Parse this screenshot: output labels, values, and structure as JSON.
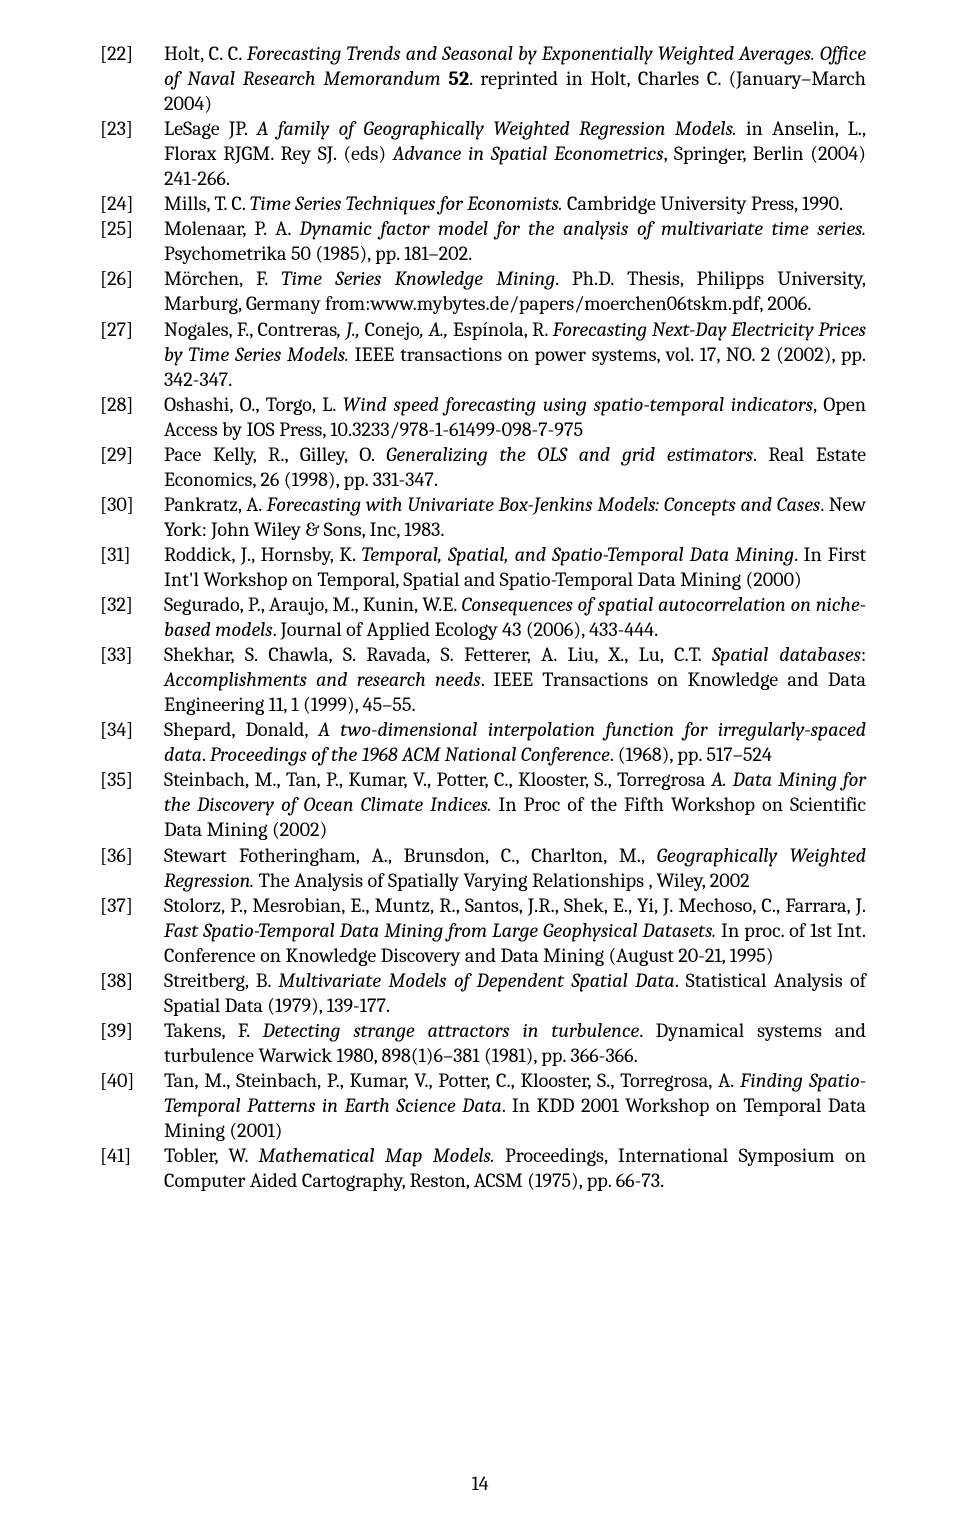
{
  "page_number": "14",
  "references": [
    {
      "num": "[22]",
      "html": "Holt, C. C. <i>Forecasting Trends and Seasonal by Exponentially Weighted Averages. Office of Naval Research Memorandum</i> <b>52</b>. reprinted in Holt, Charles C. (January–March 2004)"
    },
    {
      "num": "[23]",
      "html": "LeSage JP. <i>A family of Geographically Weighted Regression Models.</i> in Anselin, L., Florax RJGM. Rey SJ. (eds) <i>Advance in Spatial Econometrics</i>, Springer, Berlin (2004) 241-266."
    },
    {
      "num": "[24]",
      "html": "Mills, T. C. <i>Time Series Techniques for Economists.</i> Cambridge University Press, 1990."
    },
    {
      "num": "[25]",
      "html": "Molenaar, P. A.  <i>Dynamic factor model for the analysis of multivariate time series.</i> Psychometrika 50 (1985), pp. 181–202."
    },
    {
      "num": "[26]",
      "html": "Mörchen, F. <i>Time Series Knowledge Mining</i>. Ph.D. Thesis, Philipps University, Marburg, Germany from:www.mybytes.de/papers/moerchen06tskm.pdf, 2006."
    },
    {
      "num": "[27]",
      "html": "Nogales, F., Contreras<i>, J.,</i> Conejo<i>, A.,</i> Espínola, R. <i>Forecasting Next-Day Electricity Prices by  Time Series Models.</i> IEEE transactions on power systems, vol. 17, NO. 2 (2002), pp. 342-347."
    },
    {
      "num": "[28]",
      "html": "Oshashi, O., Torgo, L. <i>Wind speed forecasting using spatio-temporal indicators</i>, Open Access by IOS Press, 10.3233/978-1-61499-098-7-975"
    },
    {
      "num": "[29]",
      "html": "Pace Kelly, R., Gilley, O. <i>Generalizing the OLS and grid estimators</i>. Real Estate Economics, 26 (1998), pp. 331-347."
    },
    {
      "num": "[30]",
      "html": "Pankratz, A. <i>Forecasting with Univariate Box-Jenkins Models: Concepts and Cases</i>. New York: John Wiley & Sons, Inc, 1983."
    },
    {
      "num": "[31]",
      "html": "Roddick, J., Hornsby, K. <i>Temporal, Spatial, and Spatio-Temporal Data Mining</i>. In First Int'l Workshop on Temporal, Spatial and Spatio-Temporal Data Mining (2000)"
    },
    {
      "num": "[32]",
      "html": "Segurado, P., Araujo, M., Kunin, W.E. <i>Consequences of spatial autocorrelation on niche-based models</i>. Journal of Applied Ecology 43 (2006), 433-444."
    },
    {
      "num": "[33]",
      "html": "Shekhar, S. Chawla, S. Ravada, S. Fetterer, A. Liu, X., Lu, C.T. <i>Spatial databases</i>: <i>Accomplishments and research needs</i>. IEEE Transactions on Knowledge and Data Engineering 11, 1 (1999), 45–55."
    },
    {
      "num": "[34]",
      "html": "Shepard, Donald, <i>A two-dimensional interpolation function for irregularly-spaced data</i>. <i>Proceedings of the 1968 ACM National Conference</i>. (1968), pp. 517–524"
    },
    {
      "num": "[35]",
      "html": "Steinbach, M., Tan, P., Kumar, V., Potter, C., Klooster, S., Torregrosa <i>A. Data Mining for the Discovery of Ocean Climate Indices.</i> In Proc of the Fifth Workshop on Scientific Data Mining (2002)"
    },
    {
      "num": "[36]",
      "html": "Stewart Fotheringham, A.,  Brunsdon, C., Charlton, M., <i>Geographically Weighted Regression.</i> The Analysis of Spatially Varying Relationships , Wiley, 2002"
    },
    {
      "num": "[37]",
      "html": "Stolorz, P., Mesrobian, E., Muntz, R., Santos, J.R., Shek, E., Yi, J. Mechoso, C., Farrara, J. <i>Fast Spatio-Temporal Data Mining from Large Geophysical Datasets.</i> In proc. of 1st Int. Conference on Knowledge Discovery and Data Mining (August 20-21, 1995)"
    },
    {
      "num": "[38]",
      "html": "Streitberg, B. <i>Multivariate Models of Dependent Spatial Data</i>. Statistical Analysis of Spatial Data (1979), 139-177."
    },
    {
      "num": "[39]",
      "html": "Takens, F. <i>Detecting strange attractors in turbulence</i>. Dynamical systems and turbulence Warwick 1980, 898(1)6–381 (1981), pp. 366-366."
    },
    {
      "num": "[40]",
      "html": "Tan, M., Steinbach, P., Kumar, V., Potter, C., Klooster, S., Torregrosa, A. <i>Finding Spatio-Temporal Patterns in Earth Science Data</i>. In KDD 2001 Workshop on Temporal Data Mining (2001)"
    },
    {
      "num": "[41]",
      "html": "Tobler, W. <i>Mathematical Map Models.</i> Proceedings, International Symposium on Computer Aided Cartography, Reston, ACSM (1975), pp. 66-73."
    }
  ]
}
